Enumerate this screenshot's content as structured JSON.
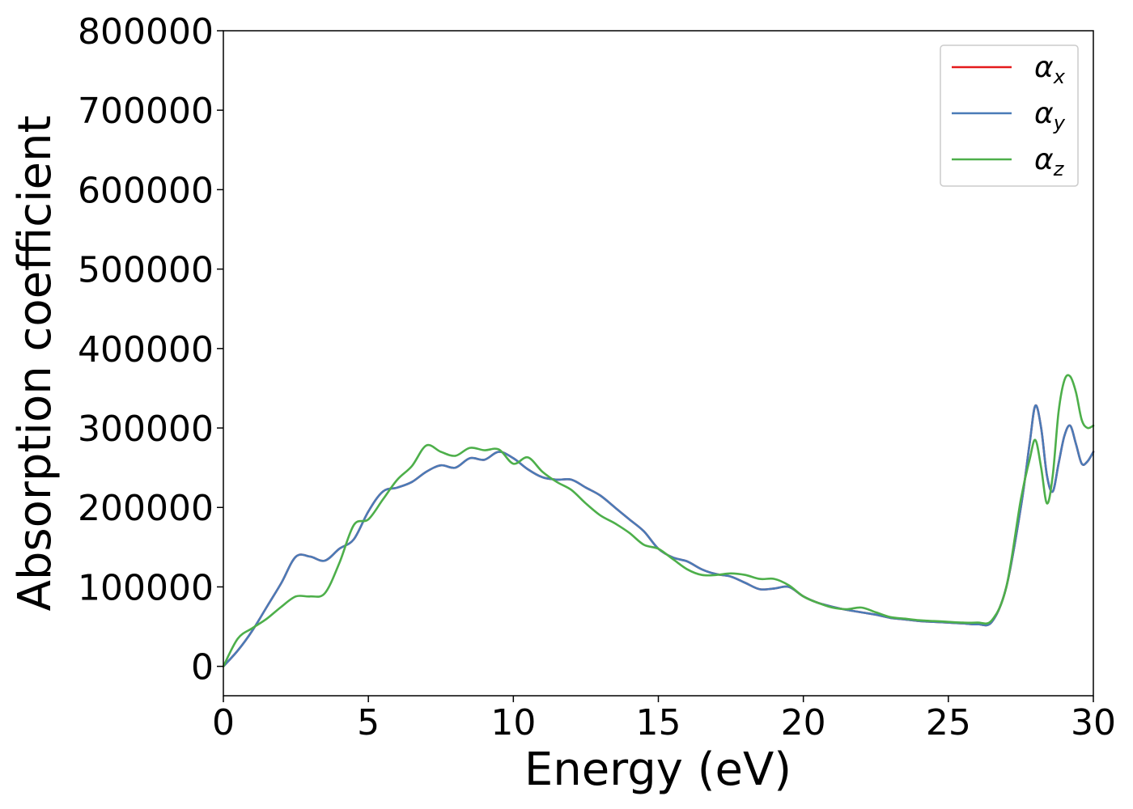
{
  "chart_data": {
    "type": "line",
    "title": "",
    "xlabel": "Energy (eV)",
    "ylabel": "Absorption coefficient",
    "xlim": [
      0,
      30
    ],
    "ylim": [
      -37000,
      800000
    ],
    "x_ticks": [
      0,
      5,
      10,
      15,
      20,
      25,
      30
    ],
    "y_ticks": [
      0,
      100000,
      200000,
      300000,
      400000,
      500000,
      600000,
      700000,
      800000
    ],
    "grid": false,
    "legend_position": "top-right",
    "series": [
      {
        "name": "α",
        "subscript": "x",
        "color": "#e41a1c",
        "x": [
          0,
          0.5,
          1.0,
          1.5,
          2.0,
          2.5,
          3.0,
          3.5,
          4.0,
          4.5,
          5.0,
          5.5,
          6.0,
          6.5,
          7.0,
          7.5,
          8.0,
          8.5,
          9.0,
          9.5,
          10.0,
          10.5,
          11.0,
          11.5,
          12.0,
          12.5,
          13.0,
          13.5,
          14.0,
          14.5,
          15.0,
          15.5,
          16.0,
          16.5,
          17.0,
          17.5,
          18.0,
          18.5,
          19.0,
          19.5,
          20.0,
          20.5,
          21.0,
          21.5,
          22.0,
          22.5,
          23.0,
          23.5,
          24.0,
          24.5,
          25.0,
          25.5,
          26.0,
          26.5,
          27.0,
          27.5,
          27.8,
          28.0,
          28.2,
          28.4,
          28.6,
          28.8,
          29.0,
          29.2,
          29.4,
          29.6,
          29.8,
          30.0
        ],
        "values": [
          0,
          20000,
          45000,
          75000,
          105000,
          138000,
          138000,
          133000,
          148000,
          160000,
          195000,
          220000,
          225000,
          232000,
          245000,
          253000,
          250000,
          262000,
          260000,
          270000,
          262000,
          248000,
          238000,
          235000,
          235000,
          225000,
          215000,
          200000,
          185000,
          170000,
          148000,
          137000,
          132000,
          122000,
          116000,
          113000,
          105000,
          97000,
          98000,
          100000,
          88000,
          80000,
          75000,
          71000,
          68000,
          65000,
          61000,
          59000,
          57000,
          56000,
          55000,
          54000,
          53000,
          56000,
          100000,
          200000,
          280000,
          328000,
          300000,
          240000,
          220000,
          255000,
          290000,
          303000,
          280000,
          255000,
          258000,
          270000
        ]
      },
      {
        "name": "α",
        "subscript": "y",
        "color": "#4a7bb7",
        "x": [
          0,
          0.5,
          1.0,
          1.5,
          2.0,
          2.5,
          3.0,
          3.5,
          4.0,
          4.5,
          5.0,
          5.5,
          6.0,
          6.5,
          7.0,
          7.5,
          8.0,
          8.5,
          9.0,
          9.5,
          10.0,
          10.5,
          11.0,
          11.5,
          12.0,
          12.5,
          13.0,
          13.5,
          14.0,
          14.5,
          15.0,
          15.5,
          16.0,
          16.5,
          17.0,
          17.5,
          18.0,
          18.5,
          19.0,
          19.5,
          20.0,
          20.5,
          21.0,
          21.5,
          22.0,
          22.5,
          23.0,
          23.5,
          24.0,
          24.5,
          25.0,
          25.5,
          26.0,
          26.5,
          27.0,
          27.5,
          27.8,
          28.0,
          28.2,
          28.4,
          28.6,
          28.8,
          29.0,
          29.2,
          29.4,
          29.6,
          29.8,
          30.0
        ],
        "values": [
          0,
          20000,
          45000,
          75000,
          105000,
          138000,
          138000,
          133000,
          148000,
          160000,
          195000,
          220000,
          225000,
          232000,
          245000,
          253000,
          250000,
          262000,
          260000,
          270000,
          262000,
          248000,
          238000,
          235000,
          235000,
          225000,
          215000,
          200000,
          185000,
          170000,
          148000,
          137000,
          132000,
          122000,
          116000,
          113000,
          105000,
          97000,
          98000,
          100000,
          88000,
          80000,
          75000,
          71000,
          68000,
          65000,
          61000,
          59000,
          57000,
          56000,
          55000,
          54000,
          53000,
          56000,
          100000,
          200000,
          280000,
          328000,
          300000,
          240000,
          220000,
          255000,
          290000,
          303000,
          280000,
          255000,
          258000,
          270000
        ]
      },
      {
        "name": "α",
        "subscript": "z",
        "color": "#4daf4a",
        "x": [
          0,
          0.5,
          1.0,
          1.5,
          2.0,
          2.5,
          3.0,
          3.5,
          4.0,
          4.5,
          5.0,
          5.5,
          6.0,
          6.5,
          7.0,
          7.5,
          8.0,
          8.5,
          9.0,
          9.5,
          10.0,
          10.5,
          11.0,
          11.5,
          12.0,
          12.5,
          13.0,
          13.5,
          14.0,
          14.5,
          15.0,
          15.5,
          16.0,
          16.5,
          17.0,
          17.5,
          18.0,
          18.5,
          19.0,
          19.5,
          20.0,
          20.5,
          21.0,
          21.5,
          22.0,
          22.5,
          23.0,
          23.5,
          24.0,
          24.5,
          25.0,
          25.5,
          26.0,
          26.5,
          27.0,
          27.5,
          27.8,
          28.0,
          28.2,
          28.4,
          28.6,
          28.8,
          29.0,
          29.2,
          29.4,
          29.6,
          29.8,
          30.0
        ],
        "values": [
          0,
          35000,
          48000,
          60000,
          75000,
          88000,
          88000,
          92000,
          130000,
          178000,
          185000,
          210000,
          235000,
          252000,
          278000,
          270000,
          265000,
          275000,
          272000,
          273000,
          255000,
          263000,
          245000,
          232000,
          222000,
          205000,
          190000,
          180000,
          168000,
          153000,
          148000,
          135000,
          122000,
          115000,
          115000,
          117000,
          115000,
          110000,
          110000,
          102000,
          88000,
          80000,
          74000,
          72000,
          74000,
          68000,
          62000,
          60000,
          58000,
          57000,
          56000,
          55000,
          55000,
          58000,
          100000,
          210000,
          260000,
          285000,
          250000,
          205000,
          240000,
          320000,
          360000,
          365000,
          345000,
          310000,
          300000,
          303000
        ]
      }
    ]
  }
}
